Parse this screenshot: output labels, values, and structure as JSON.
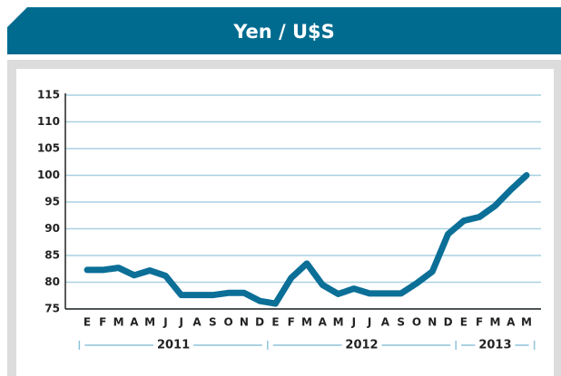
{
  "chart_data": {
    "type": "line",
    "title": "Yen / U$S",
    "categories": [
      "E",
      "F",
      "M",
      "A",
      "M",
      "J",
      "J",
      "A",
      "S",
      "O",
      "N",
      "D",
      "E",
      "F",
      "M",
      "A",
      "M",
      "J",
      "J",
      "A",
      "S",
      "O",
      "N",
      "D",
      "E",
      "F",
      "M",
      "A",
      "M"
    ],
    "year_groups": [
      {
        "label": "2011",
        "months": 12
      },
      {
        "label": "2012",
        "months": 12
      },
      {
        "label": "2013",
        "months": 5
      }
    ],
    "series": [
      {
        "name": "Yen / U$S",
        "color": "#0b6f97",
        "values": [
          82.3,
          82.3,
          82.7,
          81.3,
          82.2,
          81.2,
          77.6,
          77.6,
          77.6,
          78,
          78,
          76.5,
          76,
          80.8,
          83.5,
          79.5,
          77.8,
          78.8,
          77.9,
          77.9,
          77.9,
          79.8,
          82,
          89,
          91.5,
          92.2,
          94.3,
          97.3,
          100
        ]
      }
    ],
    "ylim": [
      75,
      115
    ],
    "yticks": [
      75,
      80,
      85,
      90,
      95,
      100,
      105,
      110,
      115
    ],
    "grid": true
  }
}
